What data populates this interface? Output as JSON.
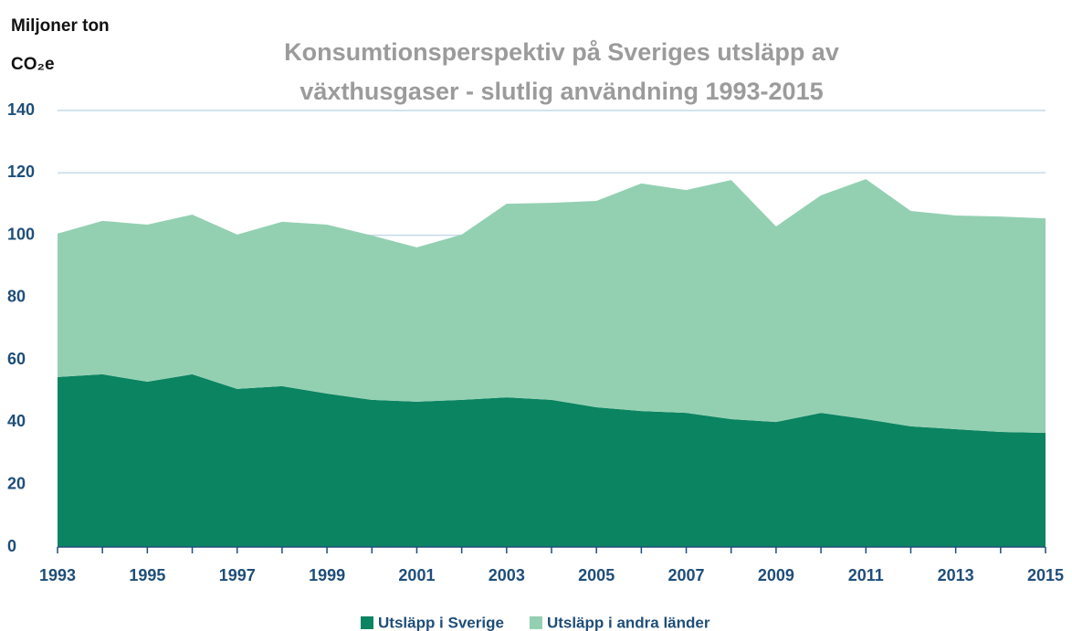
{
  "chart_data": {
    "type": "stacked_area",
    "title": "Konsumtionsperspektiv på Sveriges utsläpp av växthusgaser - slutlig användning 1993-2015",
    "y_label": "Miljoner ton CO₂e",
    "x": [
      1993,
      1994,
      1995,
      1996,
      1997,
      1998,
      1999,
      2000,
      2001,
      2002,
      2003,
      2004,
      2005,
      2006,
      2007,
      2008,
      2009,
      2010,
      2011,
      2012,
      2013,
      2014,
      2015
    ],
    "xlim": [
      1993,
      2015
    ],
    "xticks": [
      1993,
      1995,
      1997,
      1999,
      2001,
      2003,
      2005,
      2007,
      2009,
      2011,
      2013,
      2015
    ],
    "ylim": [
      0,
      140
    ],
    "yticks": [
      0,
      20,
      40,
      60,
      80,
      100,
      120,
      140
    ],
    "grid": true,
    "legend": "bottom",
    "series": [
      {
        "name": "Utsläpp i Sverige",
        "color": "#0b8461",
        "values": [
          54.5,
          55.4,
          53.0,
          55.4,
          50.7,
          51.6,
          49.2,
          47.2,
          46.6,
          47.2,
          48.0,
          47.2,
          44.8,
          43.6,
          43.0,
          41.0,
          40.1,
          43.0,
          41.0,
          38.7,
          37.8,
          36.9,
          36.6
        ]
      },
      {
        "name": "Utsläpp i andra länder",
        "color": "#93d0b2",
        "values": [
          46.0,
          49.2,
          50.4,
          51.2,
          49.5,
          52.7,
          54.2,
          52.7,
          49.5,
          53.0,
          62.1,
          63.2,
          66.2,
          73.0,
          71.5,
          76.7,
          62.7,
          69.8,
          77.0,
          69.1,
          68.5,
          69.1,
          68.8
        ]
      }
    ]
  }
}
